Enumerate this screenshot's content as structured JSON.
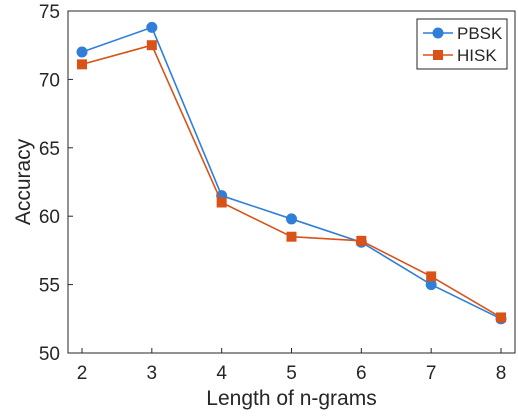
{
  "chart_data": {
    "type": "line",
    "xlabel": "Length of n-grams",
    "ylabel": "Accuracy",
    "x": [
      2,
      3,
      4,
      5,
      6,
      7,
      8
    ],
    "xlim": [
      2,
      8
    ],
    "ylim": [
      50,
      75
    ],
    "xticks": [
      2,
      3,
      4,
      5,
      6,
      7,
      8
    ],
    "yticks": [
      50,
      55,
      60,
      65,
      70,
      75
    ],
    "grid": false,
    "legend_position": "top-right",
    "series": [
      {
        "name": "PBSK",
        "marker": "circle",
        "color": "#2f7fd8",
        "values": [
          72.0,
          73.8,
          61.5,
          59.8,
          58.1,
          55.0,
          52.5
        ]
      },
      {
        "name": "HISK",
        "marker": "square",
        "color": "#d95319",
        "values": [
          71.1,
          72.5,
          61.0,
          58.5,
          58.2,
          55.6,
          52.6
        ]
      }
    ]
  }
}
